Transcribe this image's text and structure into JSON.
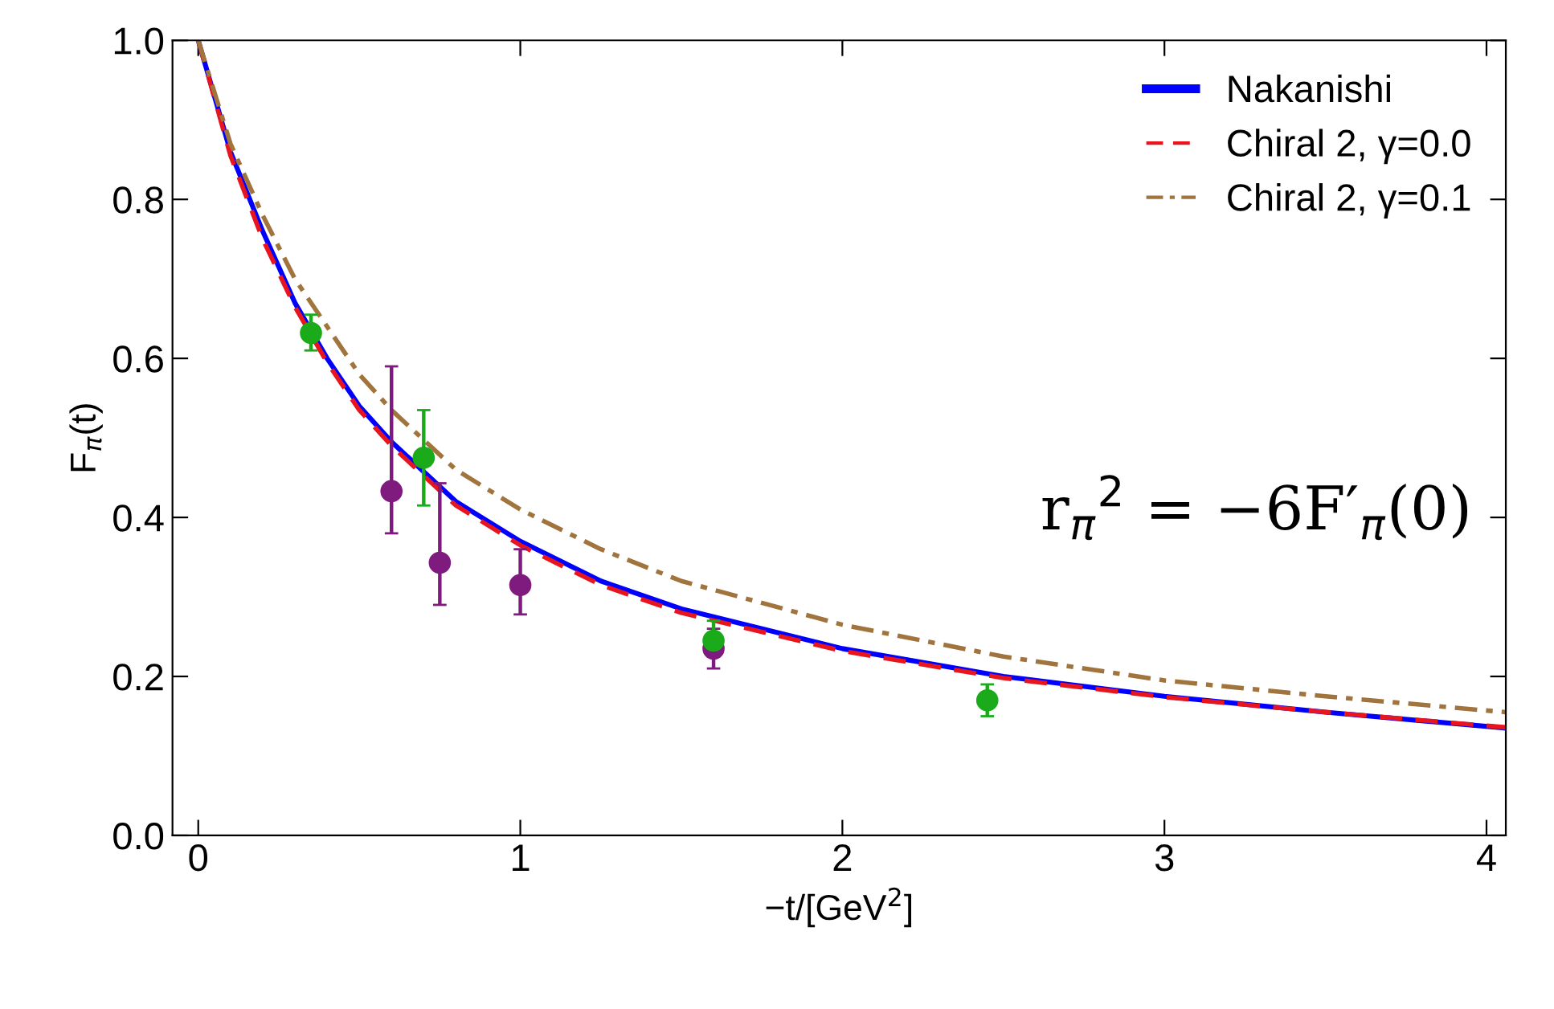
{
  "chart_data": {
    "type": "line",
    "xlabel": "−t/[GeV$^{2}$]",
    "ylabel": "F$_{π}$(t)",
    "xlim": [
      -0.08,
      4.06
    ],
    "ylim": [
      0,
      1
    ],
    "xticks": [
      0,
      1,
      2,
      3,
      4
    ],
    "yticks": [
      {
        "value": 0,
        "label": "0.0"
      },
      {
        "value": 0.2,
        "label": "0.2"
      },
      {
        "value": 0.4,
        "label": "0.4"
      },
      {
        "value": 0.6,
        "label": "0.6"
      },
      {
        "value": 0.8,
        "label": "0.8"
      },
      {
        "value": 1,
        "label": "1.0"
      }
    ],
    "grid": false,
    "legend": "top right",
    "annotations": [
      "r$_{π}$$^{2}$ = −6F′$_{π}$(0)"
    ],
    "series": [
      {
        "name": "Nakanishi",
        "color": "#0000ff",
        "line_style": "solid",
        "x": [
          0,
          0.1,
          0.2,
          0.3,
          0.4,
          0.5,
          0.6,
          0.8,
          1.0,
          1.25,
          1.5,
          2,
          2.5,
          3,
          3.5,
          4.06
        ],
        "values": [
          1.0,
          0.86,
          0.76,
          0.67,
          0.6,
          0.54,
          0.495,
          0.42,
          0.37,
          0.32,
          0.285,
          0.235,
          0.2,
          0.175,
          0.155,
          0.135
        ]
      },
      {
        "name": "Chiral 2, γ=0.0",
        "color": "#e8141e",
        "line_style": "dashed",
        "x": [
          0,
          0.1,
          0.2,
          0.3,
          0.4,
          0.5,
          0.6,
          0.8,
          1.0,
          1.25,
          1.5,
          2,
          2.5,
          3,
          3.5,
          4.06
        ],
        "values": [
          1.0,
          0.855,
          0.75,
          0.665,
          0.595,
          0.535,
          0.49,
          0.415,
          0.365,
          0.315,
          0.28,
          0.232,
          0.198,
          0.174,
          0.155,
          0.136
        ]
      },
      {
        "name": "Chiral 2, γ=0.1",
        "color": "#a0743c",
        "line_style": "dashdot",
        "x": [
          0,
          0.1,
          0.2,
          0.3,
          0.4,
          0.5,
          0.6,
          0.8,
          1.0,
          1.25,
          1.5,
          2,
          2.5,
          3,
          3.5,
          4.06
        ],
        "values": [
          1.0,
          0.87,
          0.78,
          0.7,
          0.64,
          0.58,
          0.535,
          0.46,
          0.41,
          0.36,
          0.32,
          0.265,
          0.225,
          0.195,
          0.175,
          0.155
        ]
      },
      {
        "type": "scatter",
        "color": "#1aaa1a",
        "x": [
          0.35,
          0.7,
          1.6,
          2.45
        ],
        "values": [
          0.632,
          0.475,
          0.245,
          0.17
        ],
        "errors": [
          [
            0.61,
            0.655
          ],
          [
            0.415,
            0.535
          ],
          [
            0.225,
            0.27
          ],
          [
            0.15,
            0.19
          ]
        ]
      },
      {
        "type": "scatter",
        "color": "#7f1a7f",
        "x": [
          0.6,
          0.75,
          1.0,
          1.6
        ],
        "values": [
          0.433,
          0.343,
          0.315,
          0.235
        ],
        "errors": [
          [
            0.38,
            0.59
          ],
          [
            0.29,
            0.443
          ],
          [
            0.278,
            0.36
          ],
          [
            0.21,
            0.26
          ]
        ]
      }
    ]
  }
}
